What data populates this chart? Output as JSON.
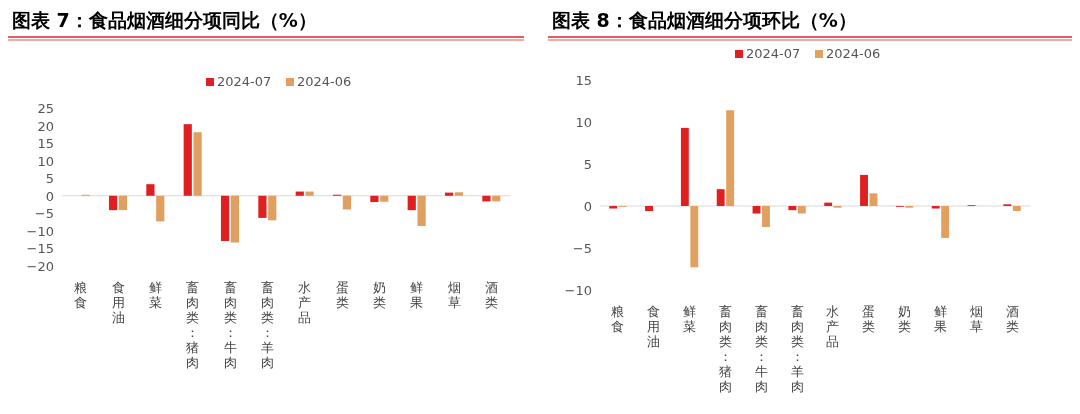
{
  "chart_data": [
    {
      "type": "bar",
      "title": "图表 7：食品烟酒细分项同比（%）",
      "categories": [
        "粮食",
        "食用油",
        "鲜菜",
        "畜肉类：猪肉",
        "畜肉类：牛肉",
        "畜肉类：羊肉",
        "水产品",
        "蛋类",
        "奶类",
        "鲜果",
        "烟草",
        "酒类"
      ],
      "series": [
        {
          "name": "2024-07",
          "color": "#e02020",
          "values": [
            0,
            -4.1,
            3.3,
            20.4,
            -12.9,
            -6.3,
            1.2,
            0.3,
            -1.8,
            -4.1,
            0.9,
            -1.6
          ]
        },
        {
          "name": "2024-06",
          "color": "#e0a060",
          "values": [
            0.3,
            -4.1,
            -7.3,
            18.1,
            -13.3,
            -7.0,
            1.2,
            -3.9,
            -1.7,
            -8.6,
            1.0,
            -1.6
          ]
        }
      ],
      "ylim": [
        -20,
        25
      ],
      "yticks": [
        -20,
        -15,
        -10,
        -5,
        0,
        5,
        10,
        15,
        20,
        25
      ],
      "legend": "top"
    },
    {
      "type": "bar",
      "title": "图表 8：食品烟酒细分项环比（%）",
      "categories": [
        "粮食",
        "食用油",
        "鲜菜",
        "畜肉类：猪肉",
        "畜肉类：牛肉",
        "畜肉类：羊肉",
        "水产品",
        "蛋类",
        "奶类",
        "鲜果",
        "烟草",
        "酒类"
      ],
      "series": [
        {
          "name": "2024-07",
          "color": "#e02020",
          "values": [
            -0.3,
            -0.6,
            9.3,
            2.0,
            -0.9,
            -0.5,
            0.4,
            3.7,
            -0.1,
            -0.3,
            0.1,
            0.2
          ]
        },
        {
          "name": "2024-06",
          "color": "#e0a060",
          "values": [
            -0.1,
            0,
            -7.3,
            11.4,
            -2.5,
            -0.9,
            -0.2,
            1.5,
            -0.2,
            -3.8,
            0,
            -0.6
          ]
        }
      ],
      "ylim": [
        -10,
        15
      ],
      "yticks": [
        -10,
        -5,
        0,
        5,
        10,
        15
      ],
      "legend": "top"
    }
  ]
}
